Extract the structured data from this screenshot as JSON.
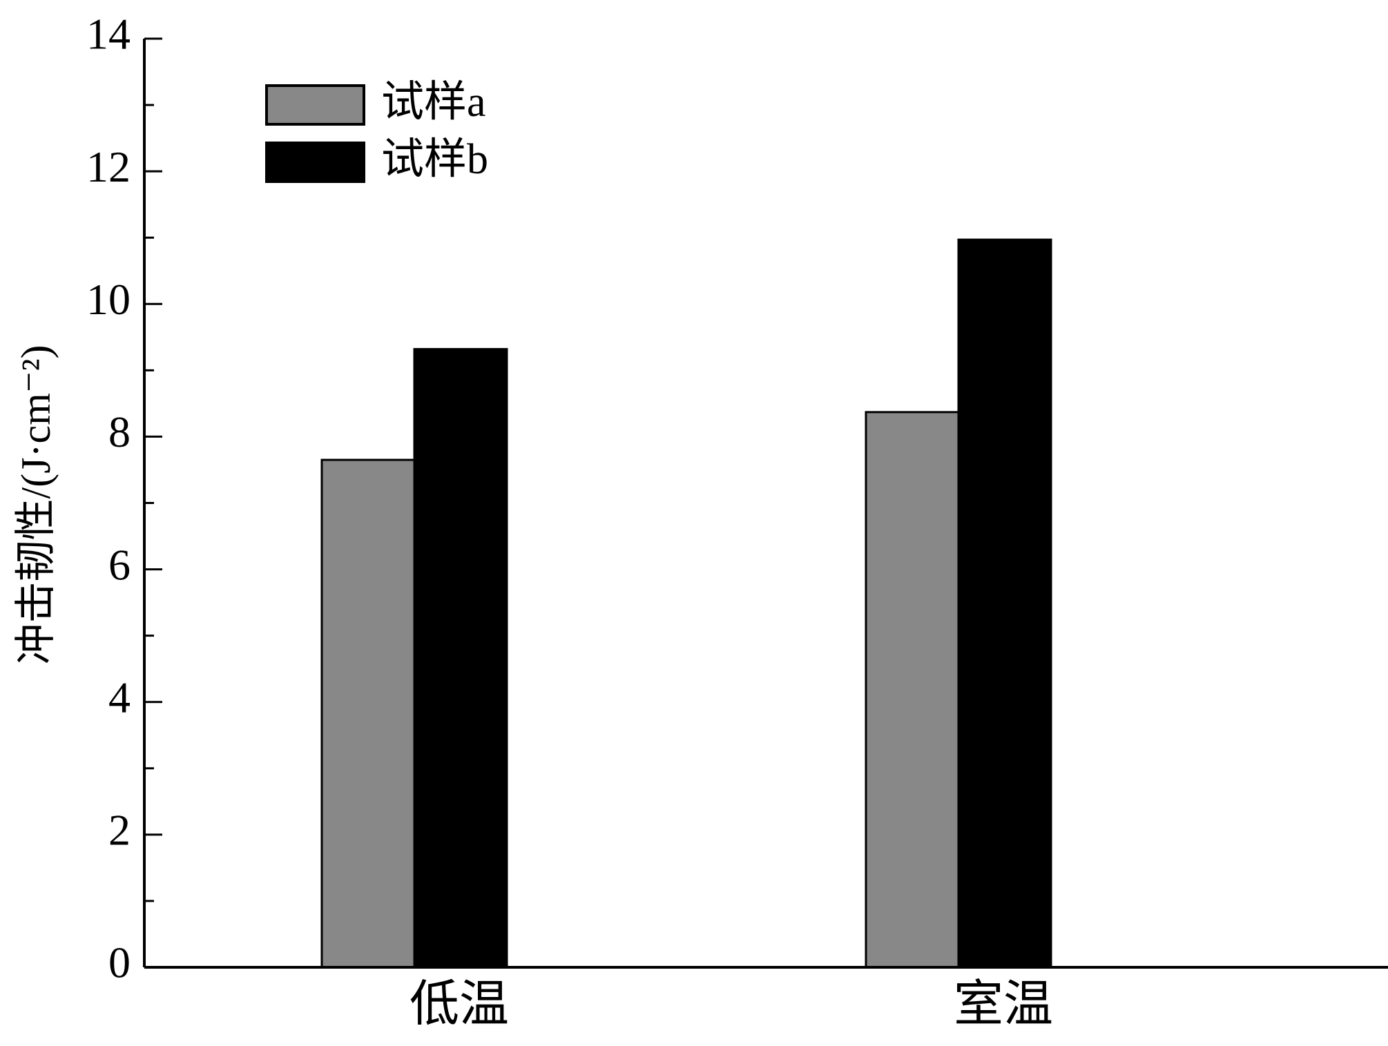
{
  "chart_data": {
    "type": "bar",
    "ylabel": "冲击韧性/(J·cm⁻²)",
    "categories": [
      "低温",
      "室温"
    ],
    "series": [
      {
        "name": "试样a",
        "color": "#888888",
        "values": [
          7.65,
          8.37
        ]
      },
      {
        "name": "试样b",
        "color": "#000000",
        "values": [
          9.32,
          10.97
        ]
      }
    ],
    "ylim": [
      0,
      14
    ],
    "yticks": [
      0,
      2,
      4,
      6,
      8,
      10,
      12,
      14
    ],
    "legend": "upper left"
  }
}
